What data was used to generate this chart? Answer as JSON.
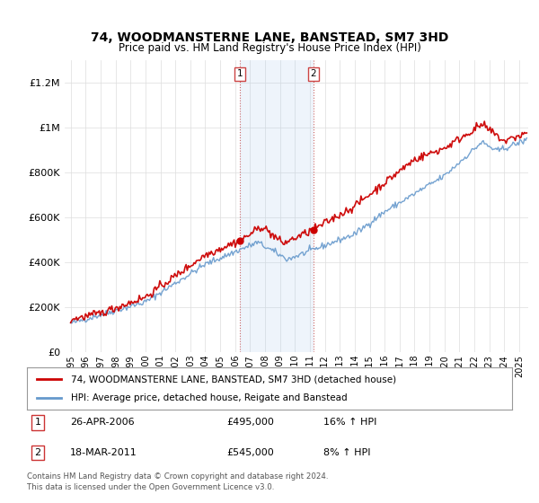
{
  "title1": "74, WOODMANSTERNE LANE, BANSTEAD, SM7 3HD",
  "title2": "Price paid vs. HM Land Registry's House Price Index (HPI)",
  "ylim": [
    0,
    1300000
  ],
  "yticks": [
    0,
    200000,
    400000,
    600000,
    800000,
    1000000,
    1200000
  ],
  "ytick_labels": [
    "£0",
    "£200K",
    "£400K",
    "£600K",
    "£800K",
    "£1M",
    "£1.2M"
  ],
  "xlabel_years": [
    "1995",
    "1996",
    "1997",
    "1998",
    "1999",
    "2000",
    "2001",
    "2002",
    "2003",
    "2004",
    "2005",
    "2006",
    "2007",
    "2008",
    "2009",
    "2010",
    "2011",
    "2012",
    "2013",
    "2014",
    "2015",
    "2016",
    "2017",
    "2018",
    "2019",
    "2020",
    "2021",
    "2022",
    "2023",
    "2024",
    "2025"
  ],
  "sale1_year": 2006.32,
  "sale1_price": 495000,
  "sale1_label": "1",
  "sale1_date": "26-APR-2006",
  "sale1_price_str": "£495,000",
  "sale1_hpi": "16% ↑ HPI",
  "sale2_year": 2011.22,
  "sale2_price": 545000,
  "sale2_label": "2",
  "sale2_date": "18-MAR-2011",
  "sale2_price_str": "£545,000",
  "sale2_hpi": "8% ↑ HPI",
  "shade_color": "#aaccee",
  "shade_alpha": 0.2,
  "line_color_property": "#cc0000",
  "line_color_hpi": "#6699cc",
  "legend_property": "74, WOODMANSTERNE LANE, BANSTEAD, SM7 3HD (detached house)",
  "legend_hpi": "HPI: Average price, detached house, Reigate and Banstead",
  "footer1": "Contains HM Land Registry data © Crown copyright and database right 2024.",
  "footer2": "This data is licensed under the Open Government Licence v3.0."
}
